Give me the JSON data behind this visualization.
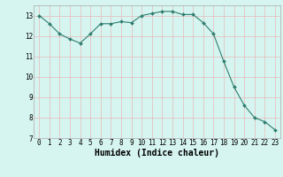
{
  "x": [
    0,
    1,
    2,
    3,
    4,
    5,
    6,
    7,
    8,
    9,
    10,
    11,
    12,
    13,
    14,
    15,
    16,
    17,
    18,
    19,
    20,
    21,
    22,
    23
  ],
  "y": [
    13.0,
    12.6,
    12.1,
    11.85,
    11.65,
    12.1,
    12.6,
    12.6,
    12.7,
    12.65,
    13.0,
    13.1,
    13.2,
    13.2,
    13.05,
    13.05,
    12.65,
    12.1,
    10.75,
    9.5,
    8.6,
    8.0,
    7.8,
    7.4
  ],
  "line_color": "#2e7d6e",
  "marker": "D",
  "marker_size": 2.0,
  "linewidth": 0.8,
  "bg_color": "#d6f5f0",
  "grid_color": "#e8b8b8",
  "xlabel": "Humidex (Indice chaleur)",
  "xlabel_fontsize": 7,
  "tick_fontsize": 5.5,
  "ylim": [
    7,
    13.5
  ],
  "xlim": [
    -0.5,
    23.5
  ],
  "yticks": [
    7,
    8,
    9,
    10,
    11,
    12,
    13
  ],
  "xticks": [
    0,
    1,
    2,
    3,
    4,
    5,
    6,
    7,
    8,
    9,
    10,
    11,
    12,
    13,
    14,
    15,
    16,
    17,
    18,
    19,
    20,
    21,
    22,
    23
  ]
}
